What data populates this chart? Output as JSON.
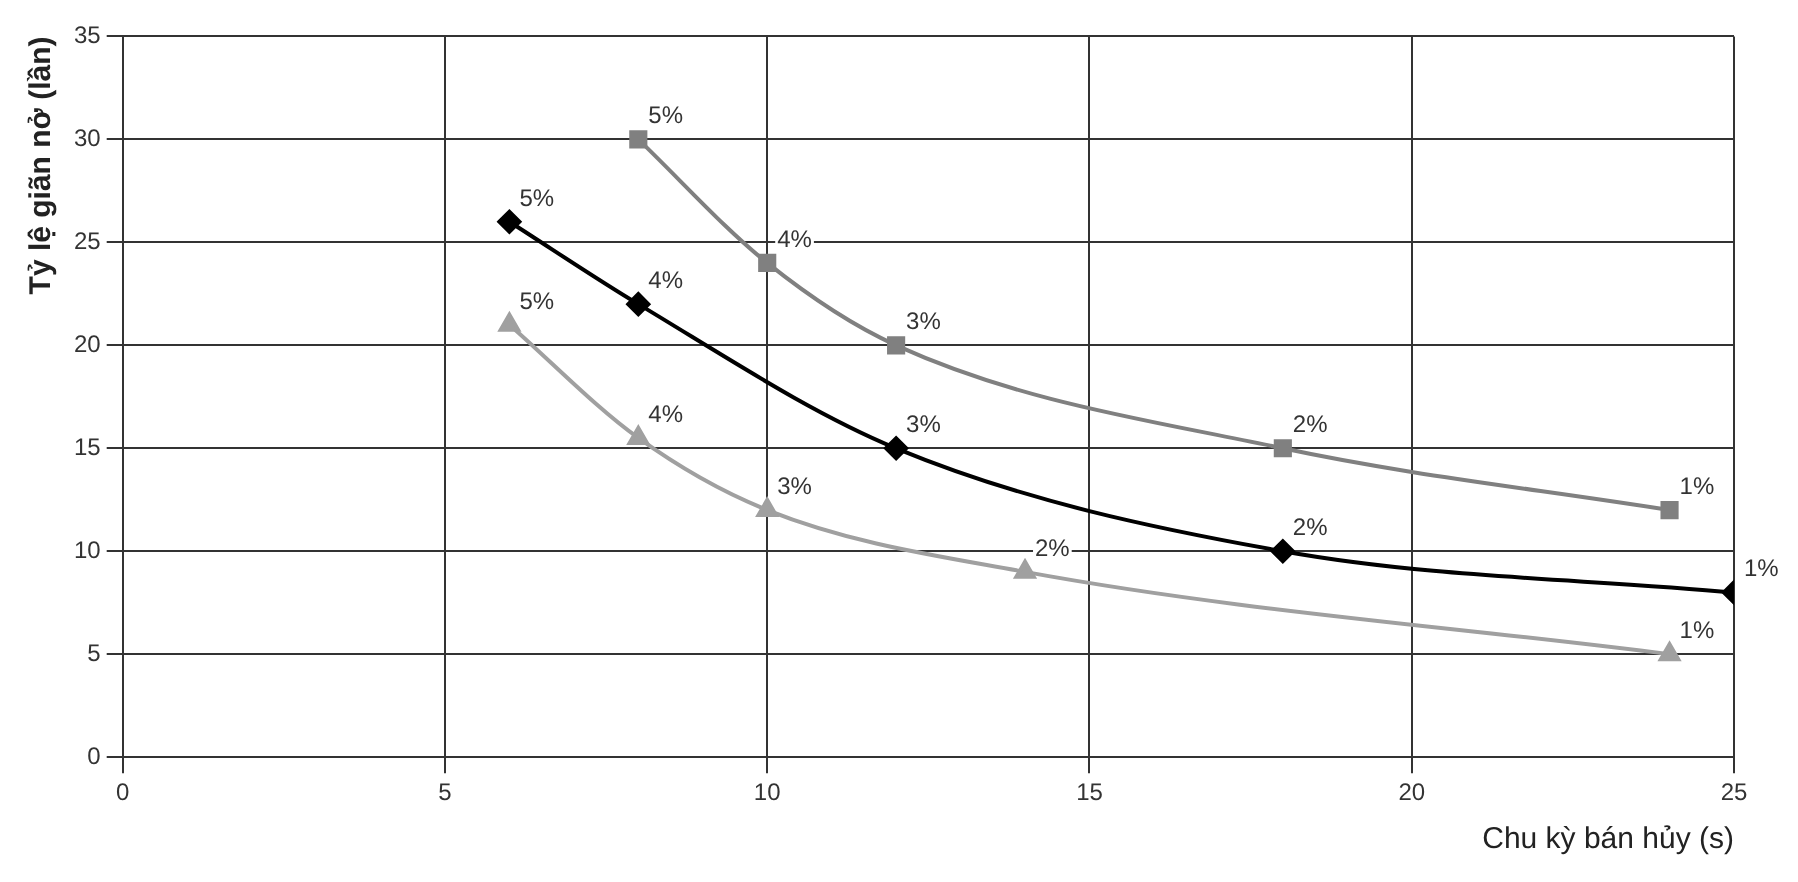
{
  "chart_data": {
    "type": "line",
    "xlabel": "Chu kỳ bán hủy (s)",
    "ylabel": "Tỷ lệ giãn nở (lần)",
    "xlim": [
      0,
      25
    ],
    "xticks": [
      0,
      5,
      10,
      15,
      20,
      25
    ],
    "ylim": [
      0,
      35
    ],
    "yticks": [
      0,
      5,
      10,
      15,
      20,
      25,
      30,
      35
    ],
    "grid": true,
    "legend": false,
    "series": [
      {
        "color": "#808080",
        "marker": "square",
        "x": [
          8,
          10,
          12,
          18,
          24
        ],
        "values": [
          30,
          24,
          20,
          15,
          12
        ]
      },
      {
        "color": "#000000",
        "marker": "diamond",
        "x": [
          6,
          8,
          12,
          18,
          25
        ],
        "values": [
          26,
          22,
          15,
          10,
          8
        ]
      },
      {
        "color": "#a0a0a0",
        "marker": "triangle",
        "x": [
          6,
          8,
          10,
          14,
          24
        ],
        "values": [
          21,
          15.5,
          12,
          9,
          5
        ]
      }
    ],
    "annotations": [
      {
        "text": "5%",
        "x": 8,
        "y": 30
      },
      {
        "text": "4%",
        "x": 10,
        "y": 24
      },
      {
        "text": "3%",
        "x": 12,
        "y": 20
      },
      {
        "text": "2%",
        "x": 18,
        "y": 15
      },
      {
        "text": "1%",
        "x": 24,
        "y": 12
      },
      {
        "text": "5%",
        "x": 6,
        "y": 26
      },
      {
        "text": "4%",
        "x": 8,
        "y": 22
      },
      {
        "text": "3%",
        "x": 12,
        "y": 15
      },
      {
        "text": "2%",
        "x": 18,
        "y": 10
      },
      {
        "text": "1%",
        "x": 25,
        "y": 8
      },
      {
        "text": "5%",
        "x": 6,
        "y": 21
      },
      {
        "text": "4%",
        "x": 8,
        "y": 15.5
      },
      {
        "text": "3%",
        "x": 10,
        "y": 12
      },
      {
        "text": "2%",
        "x": 14,
        "y": 9
      },
      {
        "text": "1%",
        "x": 24,
        "y": 5
      }
    ]
  }
}
